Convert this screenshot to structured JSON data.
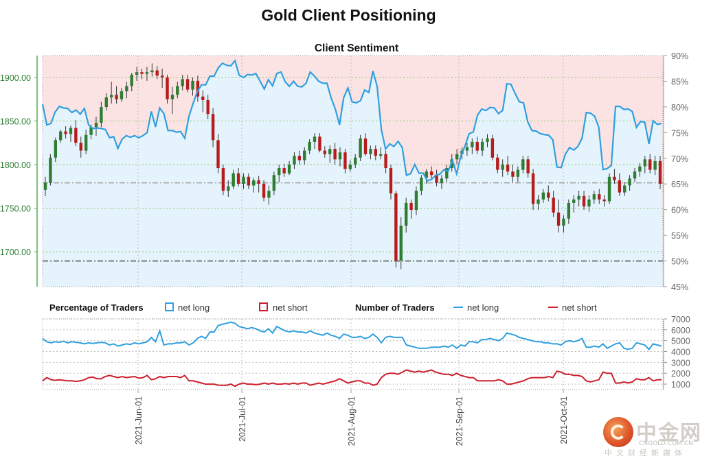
{
  "title": "Gold Client Positioning",
  "chart_data": [
    {
      "type": "candlestick",
      "title": "Client Sentiment",
      "x_tick_labels": [
        "2021-Jun-01",
        "2021-Jul-01",
        "2021-Aug-01",
        "2021-Sep-01",
        "2021-Oct-01"
      ],
      "price_axis": {
        "ylim": [
          1660,
          1925
        ],
        "ticks": [
          "1700.00",
          "1750.00",
          "1800.00",
          "1850.00",
          "1900.00"
        ]
      },
      "sentiment_axis": {
        "ylim": [
          45,
          90
        ],
        "ticks": [
          "45%",
          "50%",
          "55%",
          "60%",
          "65%",
          "70%",
          "75%",
          "80%",
          "85%",
          "90%"
        ]
      },
      "reference_lines": {
        "price_dashed": 1779,
        "sentiment_50": 50
      },
      "candles": [
        [
          1771,
          1786,
          1764,
          1779
        ],
        [
          1779,
          1812,
          1776,
          1808
        ],
        [
          1808,
          1831,
          1803,
          1828
        ],
        [
          1828,
          1840,
          1825,
          1838
        ],
        [
          1838,
          1844,
          1830,
          1835
        ],
        [
          1835,
          1845,
          1826,
          1842
        ],
        [
          1842,
          1851,
          1821,
          1825
        ],
        [
          1825,
          1832,
          1808,
          1816
        ],
        [
          1816,
          1840,
          1812,
          1834
        ],
        [
          1834,
          1846,
          1829,
          1843
        ],
        [
          1843,
          1855,
          1833,
          1848
        ],
        [
          1848,
          1872,
          1843,
          1866
        ],
        [
          1866,
          1882,
          1862,
          1877
        ],
        [
          1877,
          1895,
          1870,
          1880
        ],
        [
          1880,
          1890,
          1870,
          1875
        ],
        [
          1875,
          1888,
          1872,
          1884
        ],
        [
          1884,
          1895,
          1876,
          1890
        ],
        [
          1890,
          1905,
          1884,
          1903
        ],
        [
          1903,
          1912,
          1896,
          1906
        ],
        [
          1906,
          1910,
          1898,
          1904
        ],
        [
          1904,
          1912,
          1896,
          1906
        ],
        [
          1906,
          1916,
          1901,
          1908
        ],
        [
          1908,
          1913,
          1898,
          1902
        ],
        [
          1902,
          1910,
          1888,
          1900
        ],
        [
          1900,
          1903,
          1870,
          1875
        ],
        [
          1875,
          1889,
          1858,
          1880
        ],
        [
          1880,
          1895,
          1876,
          1890
        ],
        [
          1890,
          1903,
          1885,
          1898
        ],
        [
          1898,
          1903,
          1883,
          1886
        ],
        [
          1886,
          1900,
          1879,
          1896
        ],
        [
          1896,
          1902,
          1872,
          1878
        ],
        [
          1878,
          1885,
          1860,
          1874
        ],
        [
          1874,
          1880,
          1852,
          1858
        ],
        [
          1858,
          1865,
          1820,
          1828
        ],
        [
          1828,
          1835,
          1790,
          1796
        ],
        [
          1796,
          1800,
          1765,
          1770
        ],
        [
          1770,
          1782,
          1763,
          1775
        ],
        [
          1775,
          1794,
          1772,
          1790
        ],
        [
          1790,
          1796,
          1775,
          1778
        ],
        [
          1778,
          1790,
          1772,
          1786
        ],
        [
          1786,
          1790,
          1772,
          1776
        ],
        [
          1776,
          1785,
          1768,
          1782
        ],
        [
          1782,
          1787,
          1768,
          1778
        ],
        [
          1778,
          1782,
          1758,
          1762
        ],
        [
          1762,
          1776,
          1754,
          1770
        ],
        [
          1770,
          1792,
          1765,
          1788
        ],
        [
          1788,
          1800,
          1780,
          1796
        ],
        [
          1796,
          1801,
          1786,
          1790
        ],
        [
          1790,
          1804,
          1788,
          1800
        ],
        [
          1800,
          1814,
          1795,
          1810
        ],
        [
          1810,
          1816,
          1800,
          1805
        ],
        [
          1805,
          1820,
          1800,
          1816
        ],
        [
          1816,
          1829,
          1812,
          1826
        ],
        [
          1826,
          1836,
          1818,
          1832
        ],
        [
          1832,
          1836,
          1814,
          1816
        ],
        [
          1816,
          1821,
          1808,
          1812
        ],
        [
          1812,
          1822,
          1802,
          1818
        ],
        [
          1818,
          1825,
          1800,
          1806
        ],
        [
          1806,
          1820,
          1798,
          1814
        ],
        [
          1814,
          1818,
          1790,
          1795
        ],
        [
          1795,
          1805,
          1792,
          1800
        ],
        [
          1800,
          1812,
          1796,
          1808
        ],
        [
          1808,
          1834,
          1804,
          1830
        ],
        [
          1830,
          1836,
          1810,
          1812
        ],
        [
          1812,
          1822,
          1806,
          1818
        ],
        [
          1818,
          1822,
          1805,
          1810
        ],
        [
          1810,
          1820,
          1806,
          1812
        ],
        [
          1812,
          1816,
          1790,
          1796
        ],
        [
          1796,
          1800,
          1760,
          1767
        ],
        [
          1767,
          1770,
          1682,
          1690
        ],
        [
          1690,
          1740,
          1680,
          1730
        ],
        [
          1730,
          1762,
          1722,
          1756
        ],
        [
          1756,
          1760,
          1738,
          1748
        ],
        [
          1748,
          1775,
          1742,
          1770
        ],
        [
          1770,
          1788,
          1765,
          1785
        ],
        [
          1785,
          1795,
          1778,
          1792
        ],
        [
          1792,
          1798,
          1784,
          1788
        ],
        [
          1788,
          1794,
          1775,
          1779
        ],
        [
          1779,
          1788,
          1772,
          1784
        ],
        [
          1784,
          1800,
          1780,
          1796
        ],
        [
          1796,
          1812,
          1792,
          1806
        ],
        [
          1806,
          1818,
          1800,
          1812
        ],
        [
          1812,
          1820,
          1806,
          1816
        ],
        [
          1816,
          1825,
          1810,
          1820
        ],
        [
          1820,
          1830,
          1812,
          1826
        ],
        [
          1826,
          1832,
          1812,
          1816
        ],
        [
          1816,
          1830,
          1810,
          1826
        ],
        [
          1826,
          1835,
          1820,
          1830
        ],
        [
          1830,
          1834,
          1805,
          1808
        ],
        [
          1808,
          1812,
          1790,
          1794
        ],
        [
          1794,
          1806,
          1786,
          1800
        ],
        [
          1800,
          1810,
          1788,
          1792
        ],
        [
          1792,
          1800,
          1780,
          1786
        ],
        [
          1786,
          1798,
          1780,
          1794
        ],
        [
          1794,
          1810,
          1790,
          1806
        ],
        [
          1806,
          1810,
          1785,
          1790
        ],
        [
          1790,
          1795,
          1748,
          1755
        ],
        [
          1755,
          1765,
          1748,
          1760
        ],
        [
          1760,
          1772,
          1756,
          1768
        ],
        [
          1768,
          1776,
          1758,
          1762
        ],
        [
          1762,
          1770,
          1740,
          1745
        ],
        [
          1745,
          1760,
          1722,
          1730
        ],
        [
          1730,
          1742,
          1722,
          1738
        ],
        [
          1738,
          1760,
          1732,
          1756
        ],
        [
          1756,
          1765,
          1745,
          1760
        ],
        [
          1760,
          1770,
          1752,
          1764
        ],
        [
          1764,
          1770,
          1748,
          1752
        ],
        [
          1752,
          1765,
          1746,
          1760
        ],
        [
          1760,
          1770,
          1755,
          1766
        ],
        [
          1766,
          1772,
          1755,
          1760
        ],
        [
          1760,
          1765,
          1752,
          1758
        ],
        [
          1758,
          1790,
          1755,
          1786
        ],
        [
          1786,
          1795,
          1778,
          1782
        ],
        [
          1782,
          1790,
          1764,
          1768
        ],
        [
          1768,
          1780,
          1764,
          1776
        ],
        [
          1776,
          1788,
          1770,
          1784
        ],
        [
          1784,
          1796,
          1780,
          1792
        ],
        [
          1792,
          1802,
          1786,
          1798
        ],
        [
          1798,
          1810,
          1790,
          1806
        ],
        [
          1806,
          1812,
          1790,
          1794
        ],
        [
          1794,
          1810,
          1788,
          1804
        ],
        [
          1804,
          1810,
          1772,
          1778
        ]
      ],
      "net_long_pct": [
        80.5,
        76.5,
        76.8,
        79.0,
        80.1,
        79.8,
        79.7,
        78.9,
        79.4,
        78.6,
        79.7,
        76.5,
        75.8,
        75.9,
        75.8,
        75.6,
        74.0,
        74.2,
        71.9,
        73.7,
        74.4,
        74.1,
        74.4,
        74.0,
        74.4,
        75.0,
        79.1,
        76.1,
        79.8,
        78.7,
        75.4,
        75.4,
        75.1,
        75.2,
        73.9,
        78.2,
        80.7,
        83.0,
        84.3,
        84.3,
        86.0,
        86.0,
        87.6,
        88.5,
        88.1,
        88.0,
        89.0,
        86.2,
        85.7,
        86.3,
        86.2,
        86.5,
        85.0,
        83.5,
        85.3,
        84.1,
        86.5,
        86.8,
        84.9,
        84.0,
        85.0,
        84.0,
        83.9,
        84.6,
        86.8,
        86.0,
        85.0,
        84.6,
        84.6,
        81.7,
        79.6,
        76.5,
        81.8,
        83.7,
        81.0,
        80.8,
        81.2,
        83.3,
        82.8,
        87.0,
        84.0,
        75.6,
        71.8,
        72.8,
        72.3,
        73.3,
        72.1,
        66.7,
        67.0,
        68.8,
        67.1,
        67.1,
        65.6,
        65.9,
        66.7,
        66.9,
        67.8,
        67.5,
        69.6,
        67.0,
        70.4,
        72.4,
        74.8,
        75.1,
        78.4,
        79.6,
        79.3,
        79.9,
        79.8,
        78.7,
        79.3,
        84.5,
        84.4,
        82.6,
        81.0,
        80.8,
        77.1,
        75.4,
        75.3,
        74.8,
        74.6,
        74.5,
        73.6,
        68.3,
        68.2,
        70.8,
        72.1,
        71.6,
        72.3,
        73.9,
        78.9,
        78.8,
        78.2,
        76.0,
        67.8,
        68.0,
        68.6,
        80.1,
        80.1,
        79.5,
        79.6,
        79.1,
        76.0,
        77.2,
        77.0,
        72.8,
        77.3,
        76.6,
        76.8
      ],
      "legend_left": {
        "title": "Percentage of Traders",
        "items": [
          {
            "label": "net long",
            "color": "#2f9fdf"
          },
          {
            "label": "net short",
            "color": "#cc1f2c"
          }
        ]
      },
      "legend_right": {
        "title": "Number of Traders",
        "items": [
          {
            "label": "net long",
            "color": "#2f9fdf"
          },
          {
            "label": "net short",
            "color": "#cc1f2c"
          }
        ]
      }
    },
    {
      "type": "line",
      "title": "Number of Traders",
      "yticks": [
        "1000",
        "2000",
        "3000",
        "4000",
        "5000",
        "6000",
        "7000"
      ],
      "ylim": [
        500,
        7000
      ],
      "series": [
        {
          "name": "net long",
          "color": "#2f9fdf",
          "values": [
            5200,
            4900,
            4800,
            4900,
            4850,
            4950,
            4800,
            4900,
            4850,
            4800,
            4700,
            4800,
            4750,
            4800,
            4850,
            4800,
            4600,
            4700,
            4500,
            4600,
            4700,
            4650,
            4800,
            4700,
            4800,
            4900,
            5300,
            4900,
            5900,
            4600,
            4700,
            4700,
            4800,
            4800,
            4900,
            4600,
            4800,
            5200,
            5400,
            5200,
            5800,
            5800,
            6400,
            6500,
            6600,
            6700,
            6600,
            6300,
            6200,
            6100,
            6200,
            6100,
            5900,
            5800,
            6100,
            5700,
            6300,
            6100,
            5900,
            5800,
            5900,
            5800,
            5800,
            5700,
            5900,
            5700,
            5600,
            5500,
            5700,
            5500,
            5400,
            5200,
            5600,
            5500,
            5300,
            5300,
            5400,
            5200,
            5300,
            5600,
            5300,
            4800,
            5300,
            5400,
            5300,
            5300,
            5300,
            4600,
            4500,
            4400,
            4300,
            4300,
            4300,
            4400,
            4400,
            4400,
            4500,
            4400,
            4600,
            4300,
            4600,
            4500,
            4900,
            4900,
            4800,
            5100,
            5100,
            5200,
            5100,
            5000,
            5200,
            5700,
            5600,
            5500,
            5300,
            5200,
            5100,
            5000,
            4900,
            4900,
            4800,
            4800,
            4700,
            4700,
            4600,
            4900,
            5000,
            4900,
            5000,
            5200,
            4400,
            4400,
            4500,
            4400,
            4700,
            4300,
            4500,
            4700,
            4800,
            4300,
            4200,
            4300,
            4800,
            4700,
            4600,
            4200,
            4700,
            4600,
            4500
          ]
        },
        {
          "name": "net short",
          "color": "#cc1f2c",
          "values": [
            1300,
            1600,
            1400,
            1350,
            1400,
            1350,
            1300,
            1300,
            1250,
            1300,
            1400,
            1600,
            1650,
            1500,
            1500,
            1700,
            1800,
            1700,
            1600,
            1700,
            1600,
            1650,
            1700,
            1550,
            1600,
            1800,
            1400,
            1500,
            1700,
            1600,
            1700,
            1700,
            1700,
            1600,
            1800,
            1300,
            1300,
            1200,
            1100,
            1000,
            1000,
            1000,
            900,
            900,
            900,
            1000,
            800,
            1000,
            1100,
            1000,
            1000,
            950,
            1000,
            1100,
            1000,
            1100,
            1000,
            1000,
            1050,
            1000,
            1100,
            1000,
            1100,
            1100,
            900,
            1000,
            1100,
            1000,
            1100,
            1200,
            1300,
            1500,
            1300,
            1100,
            1200,
            1300,
            1300,
            1100,
            1100,
            900,
            1000,
            1600,
            1900,
            2000,
            2000,
            1900,
            2100,
            2300,
            2200,
            2100,
            2200,
            2100,
            2200,
            2300,
            2100,
            2000,
            1900,
            1900,
            1800,
            2000,
            1800,
            1700,
            1600,
            1600,
            1300,
            1300,
            1300,
            1300,
            1300,
            1400,
            1300,
            1000,
            1000,
            1100,
            1200,
            1300,
            1500,
            1600,
            1600,
            1600,
            1600,
            1700,
            1600,
            2200,
            2100,
            1900,
            1900,
            1800,
            1800,
            1700,
            1300,
            1200,
            1300,
            1400,
            2100,
            2000,
            2000,
            1100,
            1100,
            1200,
            1100,
            1200,
            1500,
            1400,
            1400,
            1600,
            1300,
            1400,
            1400
          ]
        }
      ]
    }
  ],
  "watermark": {
    "name": "中金网",
    "url": "CNGOLD.COM.CN",
    "sub": "中文财经新媒体"
  }
}
